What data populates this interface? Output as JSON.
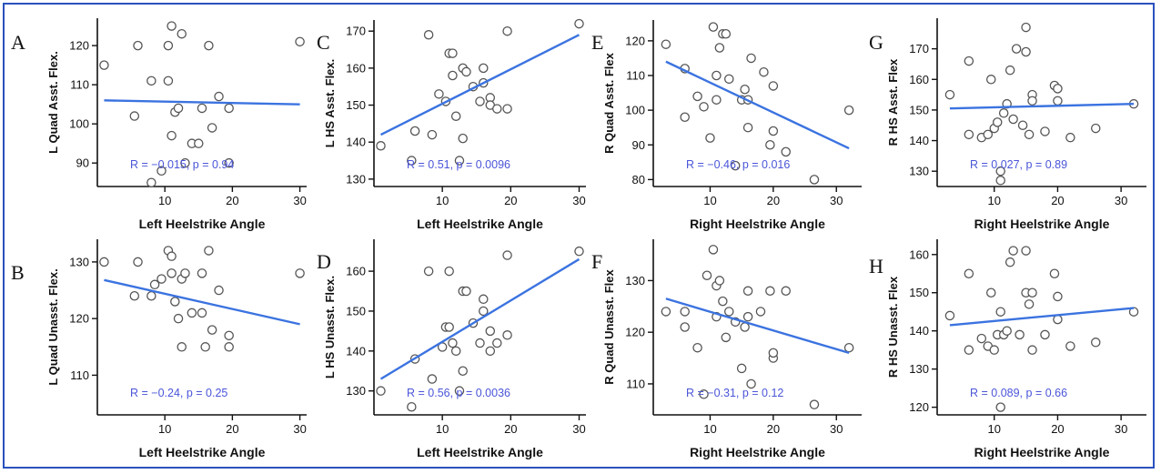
{
  "figure": {
    "border_color": "#2a52be",
    "point_color": "#555555",
    "line_color": "#3b73e0",
    "stat_color": "#4a55d8"
  },
  "chart_data": [
    {
      "id": "A",
      "letter": "A",
      "type": "scatter",
      "xlabel": "Left Heelstrike Angle",
      "ylabel": "L Quad Asst. Flex.",
      "xlim": [
        0,
        31
      ],
      "ylim": [
        84,
        127
      ],
      "xticks": [
        10,
        20,
        30
      ],
      "yticks": [
        90,
        100,
        110,
        120
      ],
      "stat_text": "R = −0.015, p = 0.94",
      "fit_line": {
        "x": [
          1,
          30
        ],
        "y": [
          106,
          105
        ]
      },
      "points": [
        {
          "x": 1,
          "y": 115
        },
        {
          "x": 5.5,
          "y": 102
        },
        {
          "x": 6,
          "y": 120
        },
        {
          "x": 8,
          "y": 111
        },
        {
          "x": 8,
          "y": 85
        },
        {
          "x": 9.5,
          "y": 88
        },
        {
          "x": 10.5,
          "y": 120
        },
        {
          "x": 10.5,
          "y": 111
        },
        {
          "x": 11,
          "y": 125
        },
        {
          "x": 11,
          "y": 97
        },
        {
          "x": 11.5,
          "y": 103
        },
        {
          "x": 12,
          "y": 104
        },
        {
          "x": 12.5,
          "y": 123
        },
        {
          "x": 13,
          "y": 90
        },
        {
          "x": 14,
          "y": 95
        },
        {
          "x": 15,
          "y": 95
        },
        {
          "x": 15.5,
          "y": 104
        },
        {
          "x": 16.5,
          "y": 120
        },
        {
          "x": 17,
          "y": 99
        },
        {
          "x": 18,
          "y": 107
        },
        {
          "x": 19.5,
          "y": 104
        },
        {
          "x": 19.5,
          "y": 90
        },
        {
          "x": 30,
          "y": 121
        }
      ]
    },
    {
      "id": "B",
      "letter": "B",
      "type": "scatter",
      "xlabel": "Left Heelstrike Angle",
      "ylabel": "L Quad Unasst. Flex.",
      "xlim": [
        0,
        31
      ],
      "ylim": [
        103,
        134
      ],
      "xticks": [
        10,
        20,
        30
      ],
      "yticks": [
        110,
        120,
        130
      ],
      "stat_text": "R = −0.24, p = 0.25",
      "fit_line": {
        "x": [
          1,
          30
        ],
        "y": [
          126.8,
          119
        ]
      },
      "points": [
        {
          "x": 1,
          "y": 130
        },
        {
          "x": 5.5,
          "y": 124
        },
        {
          "x": 6,
          "y": 130
        },
        {
          "x": 8,
          "y": 124
        },
        {
          "x": 8.5,
          "y": 126
        },
        {
          "x": 9.5,
          "y": 127
        },
        {
          "x": 10.5,
          "y": 132
        },
        {
          "x": 11,
          "y": 128
        },
        {
          "x": 11,
          "y": 131
        },
        {
          "x": 11.5,
          "y": 123
        },
        {
          "x": 12,
          "y": 120
        },
        {
          "x": 12.5,
          "y": 115
        },
        {
          "x": 12.5,
          "y": 127
        },
        {
          "x": 13,
          "y": 128
        },
        {
          "x": 14,
          "y": 121
        },
        {
          "x": 15.5,
          "y": 128
        },
        {
          "x": 15.5,
          "y": 121
        },
        {
          "x": 16,
          "y": 115
        },
        {
          "x": 16.5,
          "y": 132
        },
        {
          "x": 17,
          "y": 118
        },
        {
          "x": 18,
          "y": 125
        },
        {
          "x": 19.5,
          "y": 117
        },
        {
          "x": 19.5,
          "y": 115
        },
        {
          "x": 30,
          "y": 128
        }
      ]
    },
    {
      "id": "C",
      "letter": "C",
      "type": "scatter",
      "xlabel": "Left Heelstrike Angle",
      "ylabel": "L HS Asst. Flex.",
      "xlim": [
        0,
        31
      ],
      "ylim": [
        128,
        173
      ],
      "xticks": [
        10,
        20,
        30
      ],
      "yticks": [
        130,
        140,
        150,
        160,
        170
      ],
      "stat_text": "R = 0.51, p = 0.0096",
      "fit_line": {
        "x": [
          1,
          30
        ],
        "y": [
          142,
          169
        ]
      },
      "points": [
        {
          "x": 1,
          "y": 139
        },
        {
          "x": 5.5,
          "y": 135
        },
        {
          "x": 6,
          "y": 143
        },
        {
          "x": 8,
          "y": 169
        },
        {
          "x": 8.5,
          "y": 142
        },
        {
          "x": 9.5,
          "y": 153
        },
        {
          "x": 10.5,
          "y": 151
        },
        {
          "x": 11,
          "y": 164
        },
        {
          "x": 11.5,
          "y": 164
        },
        {
          "x": 11.5,
          "y": 158
        },
        {
          "x": 12,
          "y": 147
        },
        {
          "x": 12.5,
          "y": 135
        },
        {
          "x": 13,
          "y": 160
        },
        {
          "x": 13,
          "y": 141
        },
        {
          "x": 13.5,
          "y": 159
        },
        {
          "x": 14.5,
          "y": 155
        },
        {
          "x": 15.5,
          "y": 151
        },
        {
          "x": 16,
          "y": 156
        },
        {
          "x": 16,
          "y": 160
        },
        {
          "x": 17,
          "y": 152
        },
        {
          "x": 17,
          "y": 150
        },
        {
          "x": 18,
          "y": 149
        },
        {
          "x": 19.5,
          "y": 149
        },
        {
          "x": 19.5,
          "y": 170
        },
        {
          "x": 30,
          "y": 172
        }
      ]
    },
    {
      "id": "D",
      "letter": "D",
      "type": "scatter",
      "xlabel": "Left Heelstrike Angle",
      "ylabel": "L HS Unasst. Flex.",
      "xlim": [
        0,
        31
      ],
      "ylim": [
        124,
        168
      ],
      "xticks": [
        10,
        20,
        30
      ],
      "yticks": [
        130,
        140,
        150,
        160
      ],
      "stat_text": "R = 0.56, p = 0.0036",
      "fit_line": {
        "x": [
          1,
          30
        ],
        "y": [
          133,
          163
        ]
      },
      "points": [
        {
          "x": 1,
          "y": 130
        },
        {
          "x": 5.5,
          "y": 126
        },
        {
          "x": 6,
          "y": 138
        },
        {
          "x": 8,
          "y": 160
        },
        {
          "x": 8.5,
          "y": 133
        },
        {
          "x": 10,
          "y": 141
        },
        {
          "x": 10.5,
          "y": 146
        },
        {
          "x": 11,
          "y": 160
        },
        {
          "x": 11,
          "y": 146
        },
        {
          "x": 11.5,
          "y": 142
        },
        {
          "x": 12,
          "y": 140
        },
        {
          "x": 12.5,
          "y": 130
        },
        {
          "x": 13,
          "y": 155
        },
        {
          "x": 13,
          "y": 135
        },
        {
          "x": 13.5,
          "y": 155
        },
        {
          "x": 14.5,
          "y": 147
        },
        {
          "x": 15.5,
          "y": 142
        },
        {
          "x": 16,
          "y": 153
        },
        {
          "x": 16,
          "y": 150
        },
        {
          "x": 17,
          "y": 145
        },
        {
          "x": 17,
          "y": 140
        },
        {
          "x": 18,
          "y": 142
        },
        {
          "x": 19.5,
          "y": 144
        },
        {
          "x": 19.5,
          "y": 164
        },
        {
          "x": 30,
          "y": 165
        }
      ]
    },
    {
      "id": "E",
      "letter": "E",
      "type": "scatter",
      "xlabel": "Right Heelstrike Angle",
      "ylabel": "R Quad Asst. Flex",
      "xlim": [
        1,
        34
      ],
      "ylim": [
        78,
        126
      ],
      "xticks": [
        10,
        20,
        30
      ],
      "yticks": [
        80,
        90,
        100,
        110,
        120
      ],
      "stat_text": "R = −0.46, p = 0.016",
      "fit_line": {
        "x": [
          3,
          32
        ],
        "y": [
          114,
          89
        ]
      },
      "points": [
        {
          "x": 3,
          "y": 119
        },
        {
          "x": 6,
          "y": 112
        },
        {
          "x": 6,
          "y": 98
        },
        {
          "x": 8,
          "y": 104
        },
        {
          "x": 9,
          "y": 101
        },
        {
          "x": 10,
          "y": 92
        },
        {
          "x": 10.5,
          "y": 124
        },
        {
          "x": 11,
          "y": 103
        },
        {
          "x": 11,
          "y": 110
        },
        {
          "x": 11.5,
          "y": 118
        },
        {
          "x": 12,
          "y": 122
        },
        {
          "x": 12.5,
          "y": 122
        },
        {
          "x": 13,
          "y": 109
        },
        {
          "x": 14,
          "y": 84
        },
        {
          "x": 15,
          "y": 103
        },
        {
          "x": 15.5,
          "y": 106
        },
        {
          "x": 16,
          "y": 95
        },
        {
          "x": 16,
          "y": 103
        },
        {
          "x": 16.5,
          "y": 115
        },
        {
          "x": 18.5,
          "y": 111
        },
        {
          "x": 19.5,
          "y": 90
        },
        {
          "x": 20,
          "y": 94
        },
        {
          "x": 20,
          "y": 107
        },
        {
          "x": 22,
          "y": 88
        },
        {
          "x": 26.5,
          "y": 80
        },
        {
          "x": 32,
          "y": 100
        }
      ]
    },
    {
      "id": "F",
      "letter": "F",
      "type": "scatter",
      "xlabel": "Right Heelstrike Angle",
      "ylabel": "R Quad Unasst. Flex",
      "xlim": [
        1,
        34
      ],
      "ylim": [
        104,
        138
      ],
      "xticks": [
        10,
        20,
        30
      ],
      "yticks": [
        110,
        120,
        130
      ],
      "stat_text": "R = −0.31, p = 0.12",
      "fit_line": {
        "x": [
          3,
          32
        ],
        "y": [
          126.5,
          116
        ]
      },
      "points": [
        {
          "x": 3,
          "y": 124
        },
        {
          "x": 6,
          "y": 121
        },
        {
          "x": 6,
          "y": 124
        },
        {
          "x": 8,
          "y": 117
        },
        {
          "x": 9,
          "y": 108
        },
        {
          "x": 9.5,
          "y": 131
        },
        {
          "x": 10.5,
          "y": 136
        },
        {
          "x": 11,
          "y": 123
        },
        {
          "x": 11,
          "y": 129
        },
        {
          "x": 11.5,
          "y": 130
        },
        {
          "x": 12,
          "y": 126
        },
        {
          "x": 12.5,
          "y": 119
        },
        {
          "x": 13,
          "y": 124
        },
        {
          "x": 14,
          "y": 122
        },
        {
          "x": 15,
          "y": 113
        },
        {
          "x": 15.5,
          "y": 121
        },
        {
          "x": 16,
          "y": 123
        },
        {
          "x": 16,
          "y": 128
        },
        {
          "x": 16.5,
          "y": 110
        },
        {
          "x": 18,
          "y": 124
        },
        {
          "x": 19.5,
          "y": 128
        },
        {
          "x": 20,
          "y": 115
        },
        {
          "x": 20,
          "y": 116
        },
        {
          "x": 22,
          "y": 128
        },
        {
          "x": 26.5,
          "y": 106
        },
        {
          "x": 32,
          "y": 117
        }
      ]
    },
    {
      "id": "G",
      "letter": "G",
      "type": "scatter",
      "xlabel": "Right Heelstrike Angle",
      "ylabel": "R HS Asst. Flex",
      "xlim": [
        1,
        34
      ],
      "ylim": [
        125,
        180
      ],
      "xticks": [
        10,
        20,
        30
      ],
      "yticks": [
        130,
        140,
        150,
        160,
        170
      ],
      "stat_text": "R = 0.027, p = 0.89",
      "fit_line": {
        "x": [
          3,
          32
        ],
        "y": [
          150.5,
          152
        ]
      },
      "points": [
        {
          "x": 3,
          "y": 155
        },
        {
          "x": 6,
          "y": 142
        },
        {
          "x": 6,
          "y": 166
        },
        {
          "x": 8,
          "y": 141
        },
        {
          "x": 9,
          "y": 142
        },
        {
          "x": 9.5,
          "y": 160
        },
        {
          "x": 10,
          "y": 144
        },
        {
          "x": 10.5,
          "y": 146
        },
        {
          "x": 11,
          "y": 127
        },
        {
          "x": 11,
          "y": 130
        },
        {
          "x": 11.5,
          "y": 149
        },
        {
          "x": 12,
          "y": 152
        },
        {
          "x": 12.5,
          "y": 163
        },
        {
          "x": 13,
          "y": 147
        },
        {
          "x": 13.5,
          "y": 170
        },
        {
          "x": 14.5,
          "y": 145
        },
        {
          "x": 15,
          "y": 177
        },
        {
          "x": 15,
          "y": 169
        },
        {
          "x": 15.5,
          "y": 142
        },
        {
          "x": 16,
          "y": 155
        },
        {
          "x": 16,
          "y": 153
        },
        {
          "x": 18,
          "y": 143
        },
        {
          "x": 19.5,
          "y": 158
        },
        {
          "x": 20,
          "y": 157
        },
        {
          "x": 20,
          "y": 153
        },
        {
          "x": 22,
          "y": 141
        },
        {
          "x": 26,
          "y": 144
        },
        {
          "x": 32,
          "y": 152
        }
      ]
    },
    {
      "id": "H",
      "letter": "H",
      "type": "scatter",
      "xlabel": "Right Heelstrike Angle",
      "ylabel": "R HS Unasst. Flex",
      "xlim": [
        1,
        34
      ],
      "ylim": [
        118,
        164
      ],
      "xticks": [
        10,
        20,
        30
      ],
      "yticks": [
        120,
        130,
        140,
        150,
        160
      ],
      "stat_text": "R = 0.089, p = 0.66",
      "fit_line": {
        "x": [
          3,
          32
        ],
        "y": [
          141.5,
          146
        ]
      },
      "points": [
        {
          "x": 3,
          "y": 144
        },
        {
          "x": 6,
          "y": 135
        },
        {
          "x": 6,
          "y": 155
        },
        {
          "x": 8,
          "y": 138
        },
        {
          "x": 9,
          "y": 136
        },
        {
          "x": 9.5,
          "y": 150
        },
        {
          "x": 10,
          "y": 135
        },
        {
          "x": 10.5,
          "y": 139
        },
        {
          "x": 11,
          "y": 145
        },
        {
          "x": 11,
          "y": 120
        },
        {
          "x": 11.5,
          "y": 139
        },
        {
          "x": 12,
          "y": 140
        },
        {
          "x": 12.5,
          "y": 158
        },
        {
          "x": 13,
          "y": 161
        },
        {
          "x": 14,
          "y": 139
        },
        {
          "x": 15,
          "y": 150
        },
        {
          "x": 15,
          "y": 161
        },
        {
          "x": 15.5,
          "y": 147
        },
        {
          "x": 16,
          "y": 150
        },
        {
          "x": 16,
          "y": 135
        },
        {
          "x": 18,
          "y": 139
        },
        {
          "x": 19.5,
          "y": 155
        },
        {
          "x": 20,
          "y": 143
        },
        {
          "x": 20,
          "y": 149
        },
        {
          "x": 22,
          "y": 136
        },
        {
          "x": 26,
          "y": 137
        },
        {
          "x": 32,
          "y": 145
        }
      ]
    }
  ]
}
